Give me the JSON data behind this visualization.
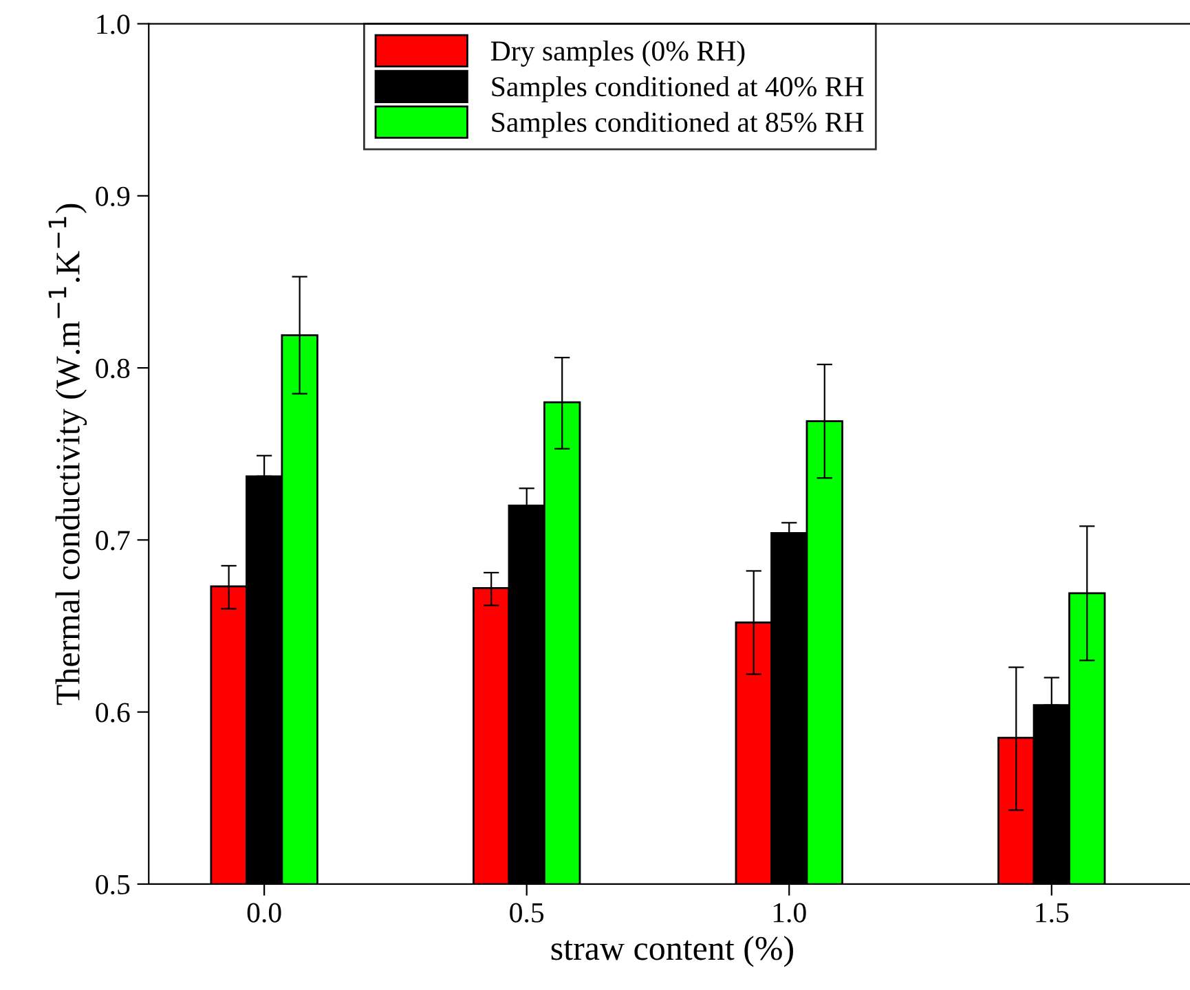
{
  "chart_data": {
    "type": "bar",
    "xlabel": "straw content (%)",
    "ylabel": "Thermal conductivity (W.m$^{−1}$.K$^{−1}$)",
    "categories": [
      "0.0",
      "0.5",
      "1.0",
      "1.5"
    ],
    "series": [
      {
        "name": "Dry samples (0% RH)",
        "color": "#ff0000",
        "values": [
          0.673,
          0.672,
          0.652,
          0.585
        ],
        "errors": [
          [
            0.66,
            0.685
          ],
          [
            0.662,
            0.681
          ],
          [
            0.622,
            0.682
          ],
          [
            0.543,
            0.626
          ]
        ]
      },
      {
        "name": "Samples conditioned at 40% RH",
        "color": "#000000",
        "values": [
          0.737,
          0.72,
          0.704,
          0.604
        ],
        "errors": [
          [
            0.737,
            0.749
          ],
          [
            0.72,
            0.73
          ],
          [
            0.704,
            0.71
          ],
          [
            0.604,
            0.62
          ]
        ]
      },
      {
        "name": "Samples conditioned at 85% RH",
        "color": "#00ff00",
        "values": [
          0.819,
          0.78,
          0.769,
          0.669
        ],
        "errors": [
          [
            0.785,
            0.853
          ],
          [
            0.753,
            0.806
          ],
          [
            0.736,
            0.802
          ],
          [
            0.63,
            0.708
          ]
        ]
      }
    ],
    "ylim": [
      0.5,
      1.0
    ],
    "yticks": [
      {
        "value": 0.5,
        "label": "0.5"
      },
      {
        "value": 0.6,
        "label": "0.6"
      },
      {
        "value": 0.7,
        "label": "0.7"
      },
      {
        "value": 0.8,
        "label": "0.8"
      },
      {
        "value": 0.9,
        "label": "0.9"
      },
      {
        "value": 1.0,
        "label": "1.0"
      }
    ],
    "legend": "top",
    "grid": false
  }
}
